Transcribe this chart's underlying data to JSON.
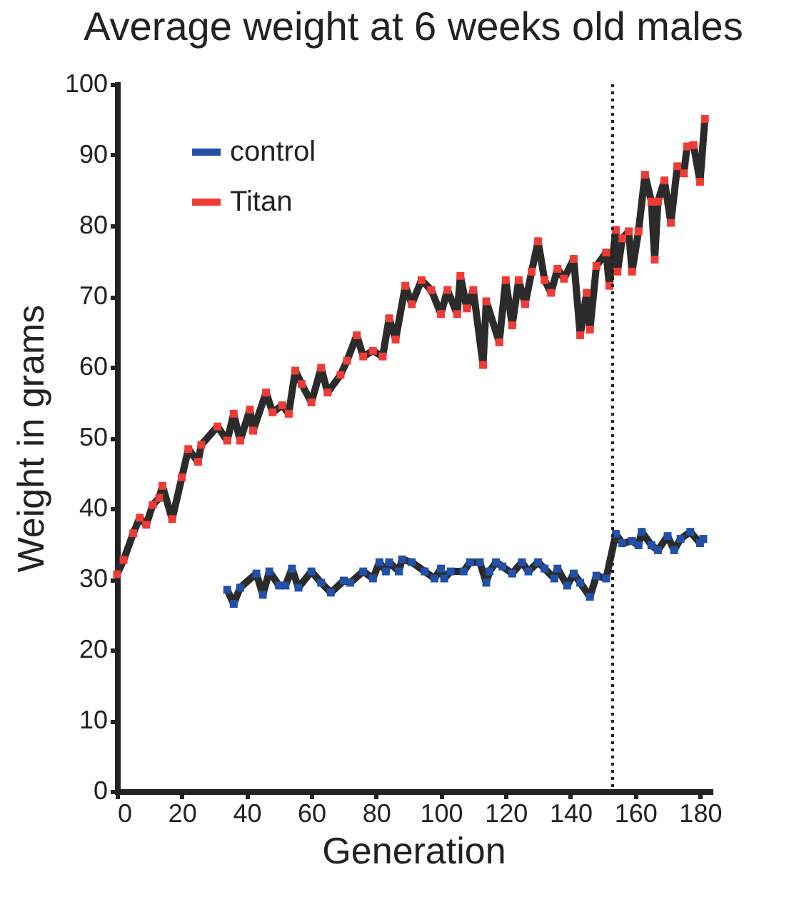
{
  "chart_data": {
    "type": "line",
    "title": "Average weight at 6 weeks old males",
    "xlabel": "Generation",
    "ylabel": "Weight in grams",
    "xlim": [
      0,
      183
    ],
    "xticks": [
      0,
      20,
      40,
      60,
      80,
      100,
      120,
      140,
      160,
      180
    ],
    "ylim": [
      0,
      100
    ],
    "yticks": [
      0,
      10,
      20,
      30,
      40,
      50,
      60,
      70,
      80,
      90,
      100
    ],
    "grid": false,
    "legend": "top left",
    "marker": "square",
    "line_style": "solid",
    "ref_lines": [
      {
        "axis": "x",
        "value": 153,
        "line_style": "dotted",
        "color": "#222222"
      }
    ],
    "series": [
      {
        "name": "control",
        "color": "#2050a8",
        "x": [
          34,
          36,
          38,
          43,
          45,
          47,
          50,
          52,
          54,
          56,
          60,
          63,
          66,
          70,
          72,
          76,
          79,
          81,
          83,
          84,
          87,
          88,
          91,
          95,
          98,
          100,
          101,
          103,
          107,
          109,
          112,
          114,
          115,
          117,
          119,
          122,
          125,
          127,
          130,
          132,
          135,
          136,
          139,
          141,
          143,
          146,
          148,
          151,
          154,
          156,
          159,
          161,
          162,
          165,
          167,
          170,
          172,
          174,
          177,
          180,
          181
        ],
        "values": [
          28.5,
          26.5,
          28.8,
          30.8,
          27.8,
          31.1,
          29.1,
          29.1,
          31.5,
          28.8,
          31.1,
          29.5,
          28.1,
          29.8,
          29.5,
          31.1,
          30.1,
          32.4,
          31.1,
          32.4,
          31.1,
          32.8,
          32.4,
          31.1,
          30.1,
          31.5,
          30.1,
          31.1,
          31.1,
          32.4,
          32.4,
          29.5,
          31.1,
          32.4,
          31.8,
          30.8,
          32.4,
          31.1,
          32.4,
          31.5,
          30.1,
          31.5,
          29.1,
          30.8,
          29.5,
          27.5,
          30.5,
          30.1,
          36.4,
          35.1,
          35.4,
          34.8,
          36.7,
          34.8,
          34.1,
          36.1,
          34.1,
          35.7,
          36.7,
          35.1,
          35.7
        ]
      },
      {
        "name": "Titan",
        "color": "#ef3b36",
        "x": [
          0,
          2,
          5,
          7,
          9,
          11,
          13,
          14,
          17,
          20,
          22,
          25,
          26,
          31,
          34,
          36,
          38,
          41,
          42,
          46,
          48,
          51,
          53,
          55,
          57,
          60,
          63,
          65,
          69,
          71,
          74,
          76,
          79,
          82,
          84,
          86,
          89,
          91,
          94,
          97,
          100,
          102,
          105,
          106,
          108,
          110,
          113,
          114,
          118,
          120,
          122,
          124,
          126,
          128,
          130,
          132,
          134,
          136,
          138,
          141,
          143,
          145,
          146,
          148,
          151,
          152,
          154,
          154.5,
          156,
          158,
          159,
          161,
          163,
          165,
          166,
          167,
          169,
          171,
          173,
          175,
          176,
          178,
          180,
          181.5
        ],
        "values": [
          30.7,
          32.7,
          36.5,
          38.7,
          37.7,
          40.5,
          41.5,
          43.2,
          38.5,
          44.4,
          48.4,
          46.6,
          49,
          51.6,
          49.6,
          53.4,
          49.6,
          54,
          51,
          56.4,
          53.6,
          54.6,
          53.4,
          59.5,
          57.6,
          55,
          59.9,
          56.4,
          58.9,
          60.9,
          64.5,
          61.5,
          62.3,
          61.5,
          66.9,
          63.9,
          71.5,
          68.9,
          72.3,
          70.9,
          67.5,
          70.9,
          67.5,
          72.9,
          68.3,
          70.9,
          60.3,
          69.3,
          63.5,
          72.3,
          65.9,
          72.3,
          68.9,
          73.5,
          77.8,
          72.3,
          70.5,
          73.9,
          72.5,
          75.3,
          64.5,
          70.5,
          65.3,
          74.3,
          76.2,
          71.5,
          79.4,
          73.5,
          78.2,
          79.2,
          73.5,
          79.2,
          87.2,
          83.4,
          75.2,
          83.4,
          86.4,
          80.4,
          88.4,
          87.4,
          91.2,
          91.4,
          86.2,
          95.1
        ]
      }
    ]
  }
}
